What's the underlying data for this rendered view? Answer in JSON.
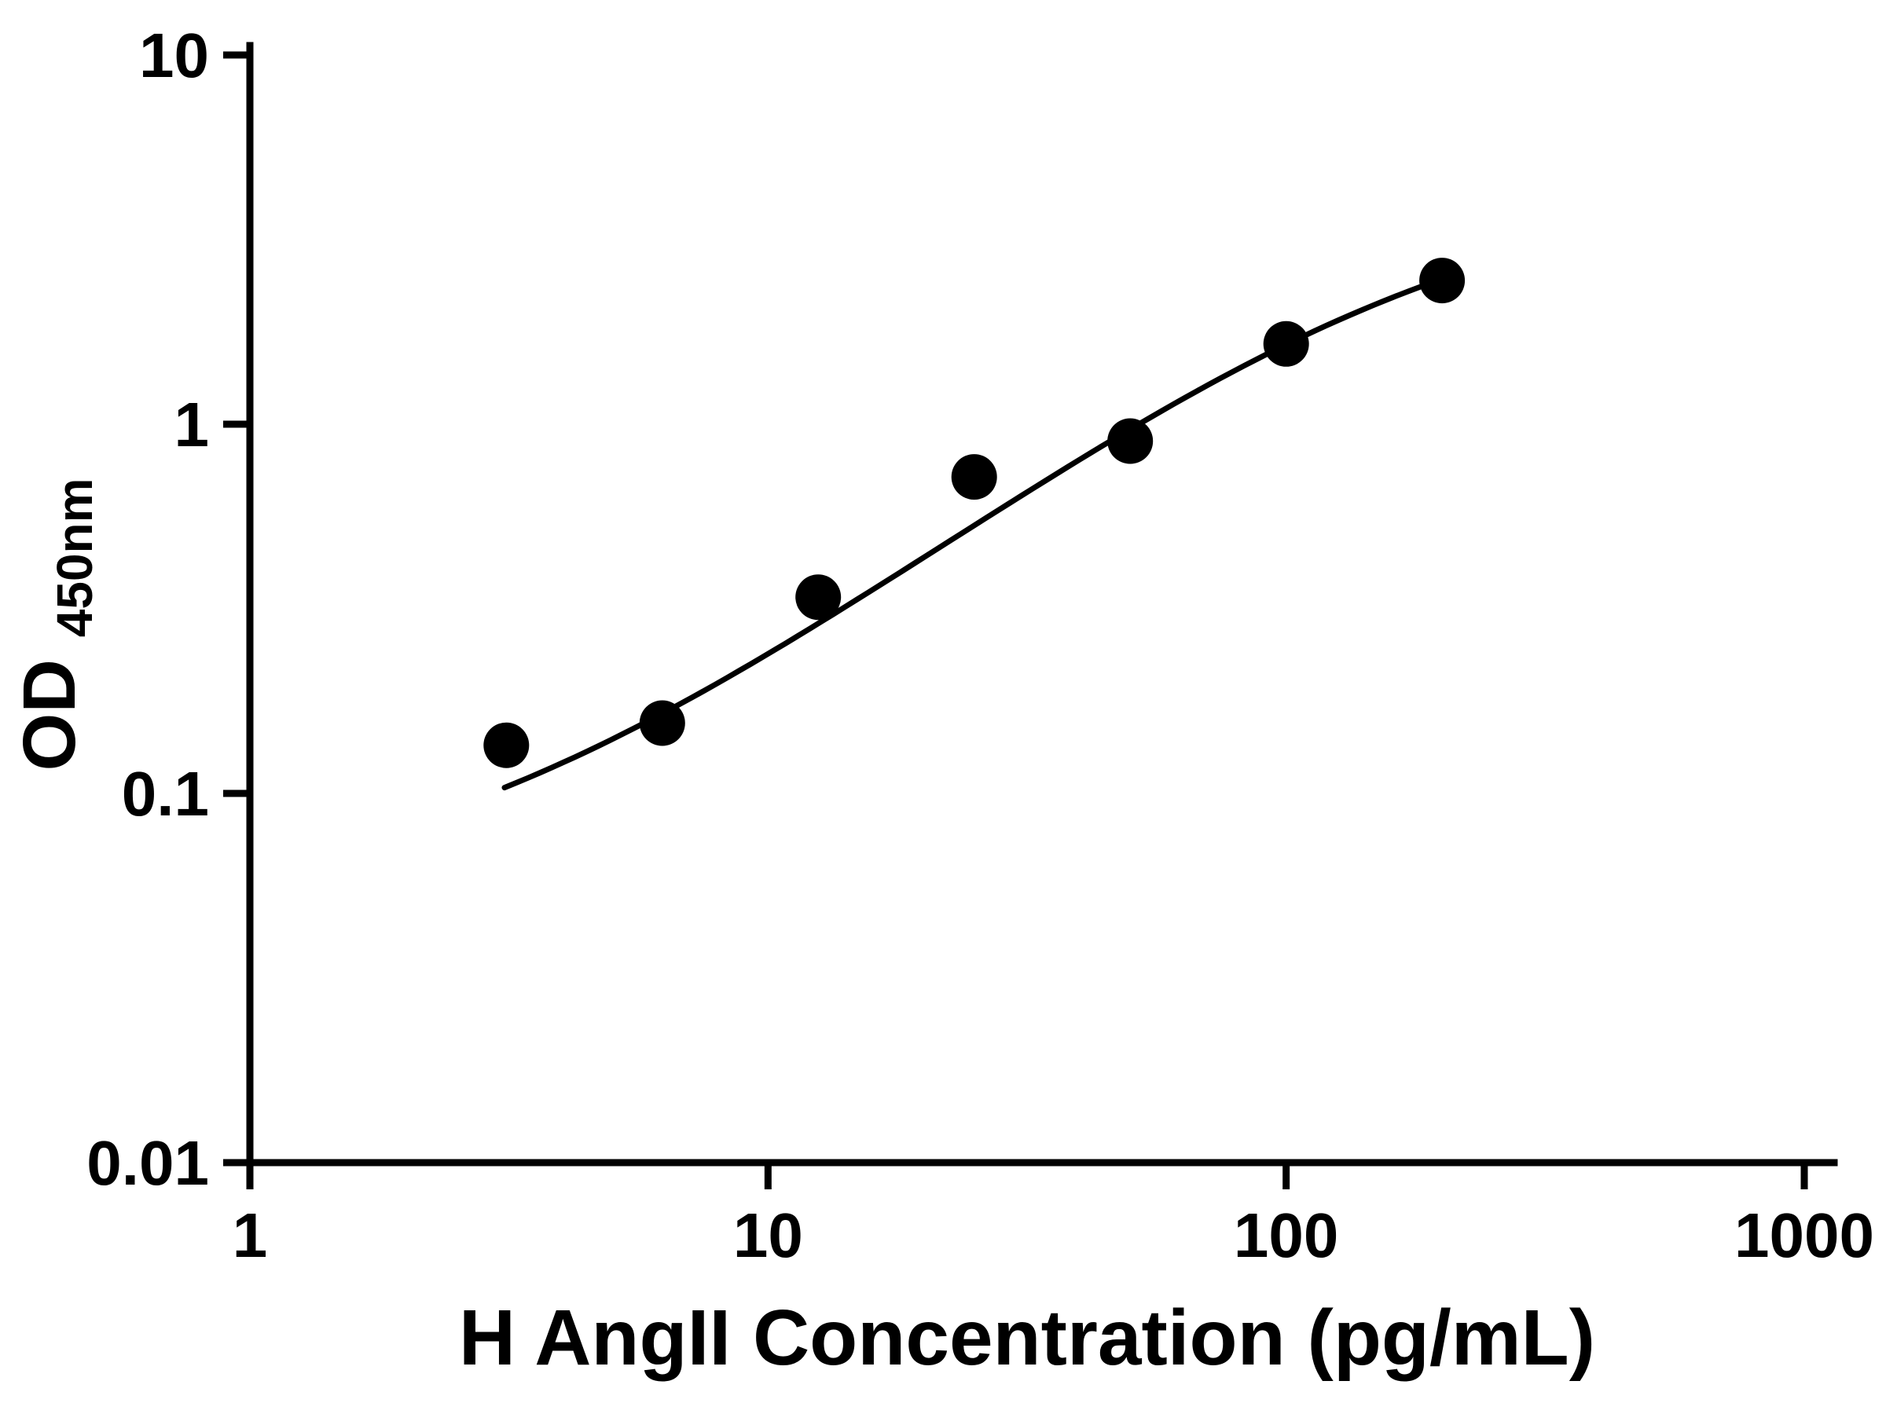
{
  "chart_data": {
    "type": "scatter",
    "title": "",
    "xlabel": "H AngII Concentration (pg/mL)",
    "ylabel_main": "OD",
    "ylabel_sub": "450nm",
    "x_scale": "log10",
    "y_scale": "log10",
    "xlim": [
      1,
      1000
    ],
    "ylim": [
      0.01,
      10
    ],
    "grid": false,
    "legend": "none",
    "x_ticks": [
      {
        "value": 1,
        "label": "1"
      },
      {
        "value": 10,
        "label": "10"
      },
      {
        "value": 100,
        "label": "100"
      },
      {
        "value": 1000,
        "label": "1000"
      }
    ],
    "y_ticks": [
      {
        "value": 0.01,
        "label": "0.01"
      },
      {
        "value": 0.1,
        "label": "0.1"
      },
      {
        "value": 1,
        "label": "1"
      },
      {
        "value": 10,
        "label": "10"
      }
    ],
    "points": {
      "x": [
        3.125,
        6.25,
        12.5,
        25,
        50,
        100,
        200
      ],
      "y": [
        0.135,
        0.155,
        0.34,
        0.72,
        0.9,
        1.65,
        2.45
      ],
      "marker": "circle",
      "color": "#000000"
    },
    "fit_curve": {
      "model": "4PL",
      "params": {
        "a": 0.05,
        "b": 1.1,
        "c": 170,
        "d": 4.5
      },
      "x_range": [
        3.1,
        201
      ],
      "color": "#000000"
    }
  },
  "colors": {
    "foreground": "#000000",
    "background": "#ffffff"
  }
}
